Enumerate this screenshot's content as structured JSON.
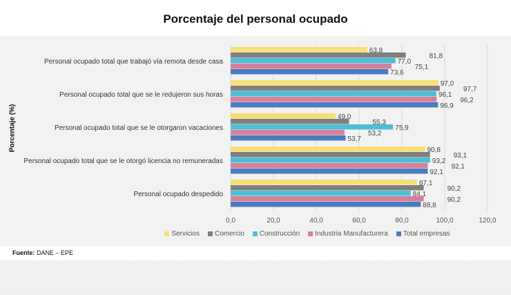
{
  "chart_data": {
    "type": "bar",
    "orientation": "horizontal",
    "title": "Porcentaje del personal ocupado",
    "ylabel": "Porcentaje (%)",
    "xlabel": "",
    "xlim": [
      0,
      120
    ],
    "xticks": [
      "0,0",
      "20,0",
      "40,0",
      "60,0",
      "80,0",
      "100,0",
      "120,0"
    ],
    "grid": true,
    "legend_position": "bottom",
    "categories": [
      "Personal ocupado total que trabajó vía remota desde casa",
      "Personal ocupado total que se le redujeron sus horas",
      "Personal ocupado total que se le otorgaron vacaciones",
      "Personal ocupado total que se le otorgó licencia no remuneradas",
      "Personal ocupado despedido"
    ],
    "series": [
      {
        "name": "Servicios",
        "color": "#f7df78",
        "values": [
          63.8,
          97.0,
          49.0,
          90.8,
          87.1
        ]
      },
      {
        "name": "Comercio",
        "color": "#7f7f7f",
        "values": [
          81.8,
          97.7,
          55.3,
          93.1,
          90.2
        ]
      },
      {
        "name": "Construcción",
        "color": "#4cbfd8",
        "values": [
          77.0,
          96.1,
          75.9,
          93.2,
          84.1
        ]
      },
      {
        "name": "Industria Manufacturera",
        "color": "#d87f9c",
        "values": [
          75.1,
          96.2,
          53.2,
          92.1,
          90.2
        ]
      },
      {
        "name": "Total empresas",
        "color": "#4a7cbf",
        "values": [
          73.6,
          96.9,
          53.7,
          92.1,
          88.8
        ]
      }
    ]
  },
  "source": {
    "label": "Fuente:",
    "text": "DANE – EPE"
  }
}
